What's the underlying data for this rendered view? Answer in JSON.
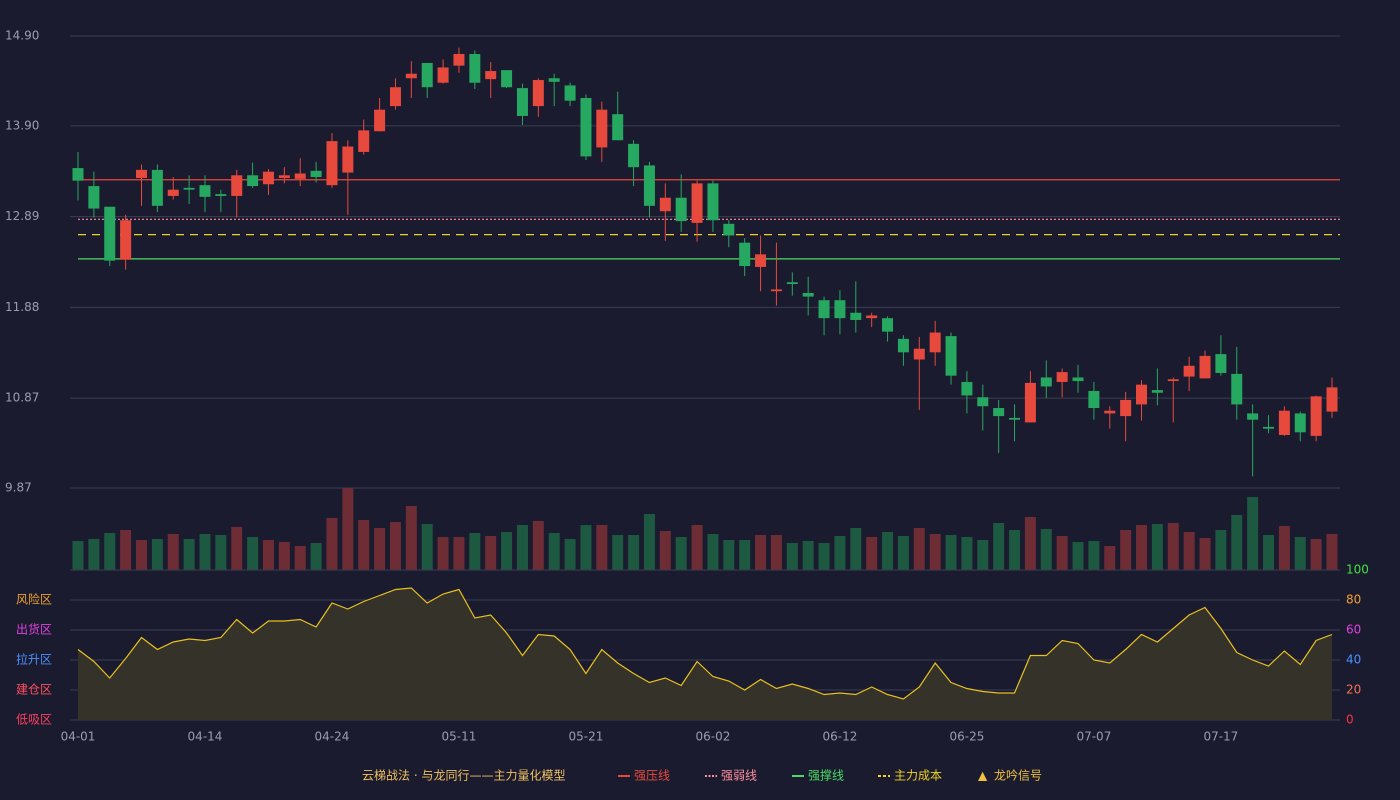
{
  "chart_data": [
    {
      "type": "candlestick",
      "title": "云梯战法 · 与龙同行——主力量化模型",
      "categories": [
        "04-01",
        null,
        null,
        null,
        null,
        null,
        null,
        null,
        "04-14",
        null,
        null,
        null,
        null,
        null,
        null,
        null,
        "04-24",
        null,
        null,
        null,
        null,
        null,
        null,
        null,
        "05-11",
        null,
        null,
        null,
        null,
        null,
        null,
        null,
        "05-21",
        null,
        null,
        null,
        null,
        null,
        null,
        null,
        "06-02",
        null,
        null,
        null,
        null,
        null,
        null,
        null,
        "06-12",
        null,
        null,
        null,
        null,
        null,
        null,
        null,
        "06-25",
        null,
        null,
        null,
        null,
        null,
        null,
        null,
        "07-07",
        null,
        null,
        null,
        null,
        null,
        null,
        null,
        "07-17",
        null,
        null,
        null,
        null,
        null,
        null,
        null
      ],
      "open": [
        13.43,
        13.23,
        13.0,
        12.41,
        13.32,
        13.41,
        13.12,
        13.21,
        13.24,
        13.14,
        13.12,
        13.35,
        13.25,
        13.32,
        13.31,
        13.4,
        13.24,
        13.38,
        13.61,
        13.84,
        14.12,
        14.43,
        14.6,
        14.38,
        14.57,
        14.7,
        14.42,
        14.52,
        14.32,
        14.12,
        14.43,
        14.35,
        14.21,
        13.66,
        14.03,
        13.7,
        13.46,
        12.95,
        13.1,
        12.82,
        13.26,
        12.81,
        12.6,
        12.33,
        12.06,
        12.16,
        12.04,
        11.96,
        11.96,
        11.82,
        11.76,
        11.76,
        11.53,
        11.3,
        11.38,
        11.56,
        11.05,
        10.88,
        10.76,
        10.65,
        10.6,
        11.1,
        11.05,
        11.1,
        10.95,
        10.7,
        10.67,
        10.8,
        10.96,
        11.06,
        11.11,
        11.09,
        11.36,
        11.14,
        10.7,
        10.55,
        10.46,
        10.7,
        10.45,
        10.72
      ],
      "high": [
        13.61,
        13.39,
        13.0,
        12.91,
        13.47,
        13.47,
        13.33,
        13.35,
        13.35,
        13.19,
        13.41,
        13.49,
        13.42,
        13.44,
        13.54,
        13.5,
        13.82,
        13.74,
        13.97,
        14.21,
        14.43,
        14.62,
        14.6,
        14.64,
        14.77,
        14.74,
        14.61,
        14.52,
        14.37,
        14.43,
        14.48,
        14.38,
        14.25,
        14.17,
        14.28,
        13.74,
        13.5,
        13.26,
        13.36,
        13.29,
        13.29,
        12.85,
        12.65,
        12.68,
        12.6,
        12.27,
        12.22,
        12.0,
        12.07,
        12.17,
        11.82,
        11.78,
        11.57,
        11.55,
        11.73,
        11.6,
        11.17,
        11.02,
        10.85,
        10.8,
        11.17,
        11.29,
        11.2,
        11.24,
        11.05,
        10.78,
        10.94,
        11.07,
        11.2,
        11.1,
        11.33,
        11.4,
        11.57,
        11.44,
        10.8,
        10.68,
        10.78,
        10.72,
        10.9,
        11.1
      ],
      "low": [
        13.07,
        12.88,
        12.34,
        12.3,
        13.01,
        12.94,
        13.08,
        13.03,
        12.94,
        12.94,
        12.88,
        13.21,
        13.13,
        13.26,
        13.23,
        13.27,
        13.21,
        12.91,
        13.58,
        13.84,
        14.08,
        14.21,
        14.21,
        14.37,
        14.49,
        14.31,
        14.21,
        14.32,
        13.91,
        14.0,
        14.12,
        14.12,
        13.52,
        13.5,
        13.74,
        13.23,
        12.88,
        12.62,
        12.72,
        12.61,
        12.72,
        12.55,
        12.23,
        12.06,
        11.9,
        12.01,
        11.79,
        11.57,
        11.58,
        11.6,
        11.66,
        11.5,
        11.23,
        10.74,
        11.23,
        11.02,
        10.7,
        10.51,
        10.26,
        10.39,
        10.6,
        10.87,
        10.88,
        10.93,
        10.63,
        10.53,
        10.39,
        10.62,
        10.79,
        10.6,
        10.95,
        11.09,
        11.12,
        10.63,
        10.0,
        10.48,
        10.45,
        10.39,
        10.39,
        10.65
      ],
      "close": [
        13.29,
        12.98,
        12.4,
        12.85,
        13.41,
        13.01,
        13.19,
        13.19,
        13.11,
        13.12,
        13.35,
        13.23,
        13.39,
        13.35,
        13.37,
        13.33,
        13.73,
        13.67,
        13.85,
        14.08,
        14.33,
        14.48,
        14.33,
        14.55,
        14.7,
        14.38,
        14.51,
        14.33,
        14.01,
        14.41,
        14.39,
        14.18,
        13.56,
        14.08,
        13.74,
        13.44,
        13.01,
        13.1,
        12.84,
        13.26,
        12.85,
        12.68,
        12.34,
        12.47,
        12.08,
        12.14,
        12.0,
        11.76,
        11.76,
        11.74,
        11.79,
        11.61,
        11.38,
        11.42,
        11.6,
        11.12,
        10.9,
        10.78,
        10.67,
        10.63,
        11.04,
        11.0,
        11.16,
        11.06,
        10.76,
        10.73,
        10.85,
        11.02,
        10.93,
        11.08,
        11.23,
        11.34,
        11.15,
        10.8,
        10.63,
        10.53,
        10.73,
        10.49,
        10.89,
        10.99
      ],
      "up_color": "#e8493d",
      "down_color": "#27a860",
      "ylim": [
        9.87,
        14.9
      ],
      "yticks": [
        {
          "value": 9.87,
          "label": "9.87"
        },
        {
          "value": 10.87,
          "label": "10.87"
        },
        {
          "value": 11.88,
          "label": "11.88"
        },
        {
          "value": 12.89,
          "label": "12.89"
        },
        {
          "value": 13.9,
          "label": "13.90"
        },
        {
          "value": 14.9,
          "label": "14.90"
        }
      ],
      "grid": true,
      "overlays": [
        {
          "name": "强压线",
          "color": "#e8493d",
          "value": 13.3,
          "style": "solid"
        },
        {
          "name": "强弱线",
          "color": "#ff8fa0",
          "value": 12.86,
          "style": "dotted"
        },
        {
          "name": "强撑线",
          "color": "#4cd964",
          "value": 12.42,
          "style": "solid"
        },
        {
          "name": "主力成本",
          "color": "#f0d020",
          "value": 12.69,
          "style": "dashed"
        },
        {
          "name": "龙吟信号",
          "color": "#f0c040",
          "symbol": "▲"
        }
      ]
    },
    {
      "type": "bar",
      "values": [
        29,
        31,
        37,
        40,
        30,
        31,
        36,
        31,
        36,
        35,
        43,
        33,
        30,
        28,
        24,
        27,
        52,
        82,
        50,
        42,
        48,
        64,
        46,
        33,
        33,
        37,
        34,
        38,
        45,
        49,
        37,
        31,
        45,
        45,
        35,
        35,
        56,
        39,
        33,
        45,
        36,
        30,
        30,
        35,
        35,
        27,
        29,
        27,
        34,
        42,
        33,
        38,
        34,
        42,
        36,
        35,
        33,
        30,
        47,
        40,
        53,
        41,
        34,
        28,
        29,
        24,
        40,
        45,
        46,
        47,
        38,
        32,
        40,
        55,
        73,
        35,
        44,
        33,
        31,
        36
      ],
      "up_color": "#6e2c34",
      "down_color": "#1d5840"
    },
    {
      "type": "line",
      "values": [
        47,
        39,
        28,
        41,
        55,
        47,
        52,
        54,
        53,
        55,
        67,
        58,
        66,
        66,
        67,
        62,
        78,
        74,
        79,
        83,
        87,
        88,
        78,
        84,
        87,
        68,
        70,
        58,
        43,
        57,
        56,
        47,
        31,
        47,
        38,
        31,
        25,
        28,
        23,
        39,
        29,
        26,
        20,
        27,
        21,
        24,
        21,
        17,
        18,
        17,
        22,
        17,
        14,
        22,
        38,
        25,
        21,
        19,
        18,
        18,
        43,
        43,
        53,
        51,
        40,
        38,
        47,
        57,
        52,
        61,
        70,
        75,
        61,
        45,
        40,
        36,
        46,
        37,
        53,
        57
      ],
      "color": "#e8c020",
      "fill": "#35322a",
      "ylim": [
        0,
        100
      ],
      "yticks": [
        {
          "value": 0,
          "color": "#ff3040"
        },
        {
          "value": 20,
          "color": "#f07050"
        },
        {
          "value": 40,
          "color": "#4a90ff"
        },
        {
          "value": 60,
          "color": "#e040e0"
        },
        {
          "value": 80,
          "color": "#f0a030"
        },
        {
          "value": 100,
          "color": "#40e040"
        }
      ],
      "zones": [
        {
          "label": "风险区",
          "value": 80,
          "color": "#f0a030"
        },
        {
          "label": "出货区",
          "value": 60,
          "color": "#e040e0"
        },
        {
          "label": "拉升区",
          "value": 40,
          "color": "#4a90ff"
        },
        {
          "label": "建仓区",
          "value": 20,
          "color": "#ff5060"
        },
        {
          "label": "低吸区",
          "value": 0,
          "color": "#ff4060"
        }
      ]
    }
  ]
}
